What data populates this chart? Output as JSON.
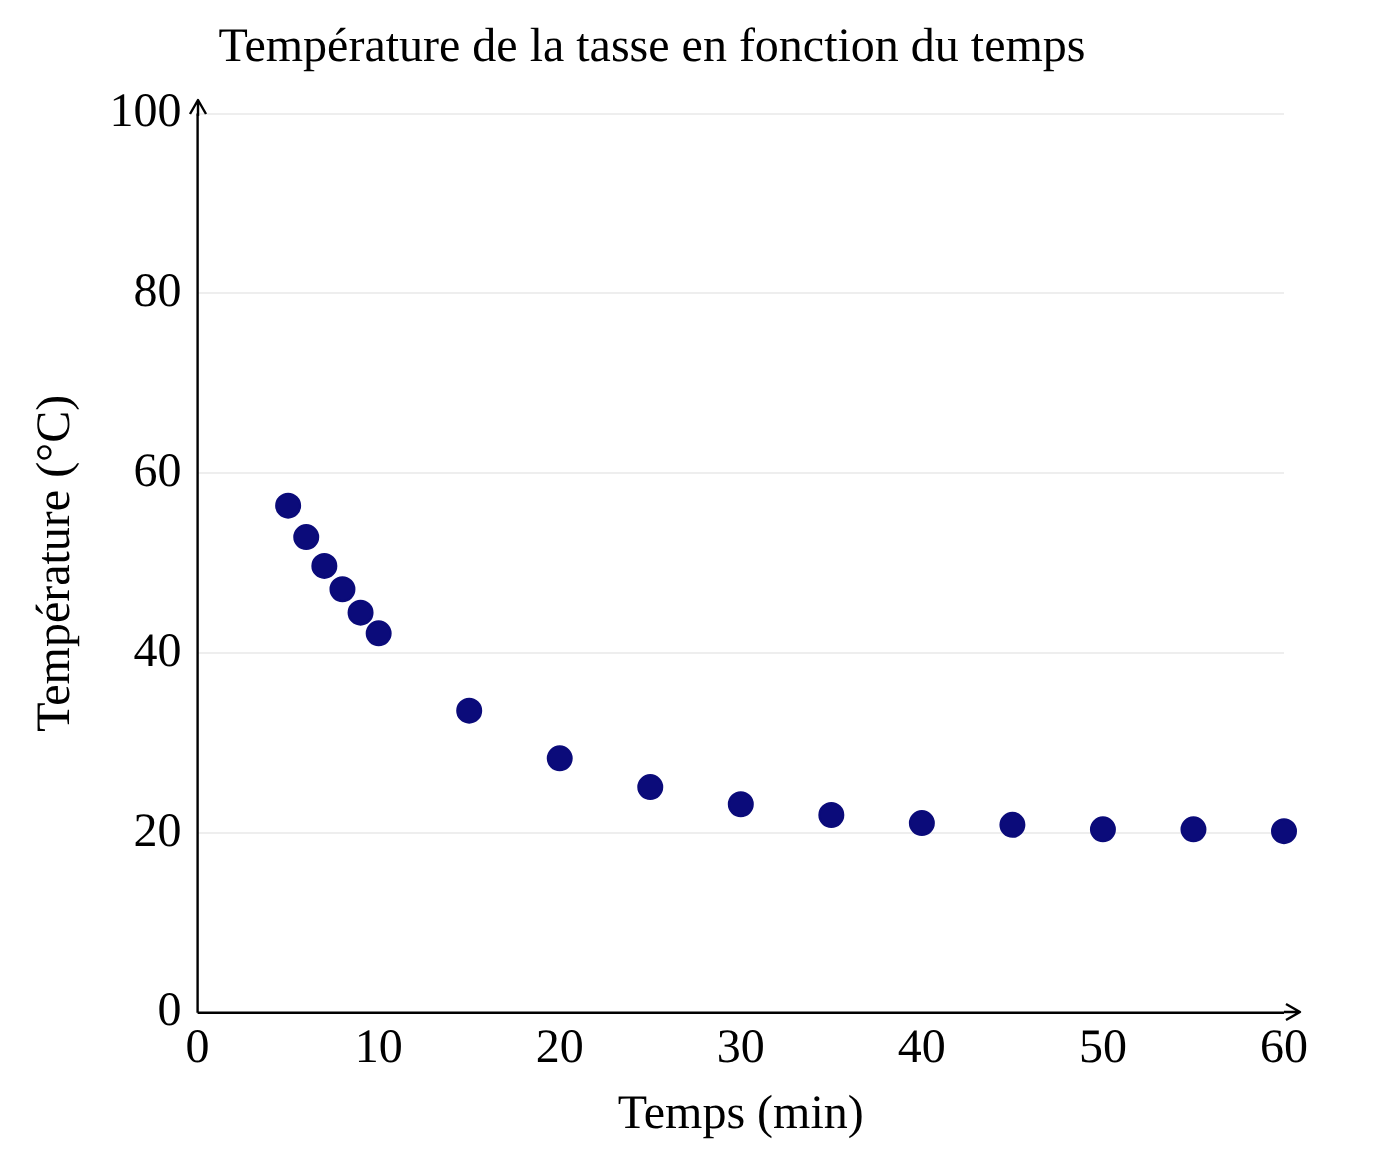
{
  "chart_data": {
    "type": "scatter",
    "title": "Température de la tasse en fonction du temps",
    "xlabel": "Temps (min)",
    "ylabel": "Température (°C)",
    "x": [
      5,
      6,
      7,
      8,
      9,
      10,
      15,
      20,
      25,
      30,
      35,
      40,
      45,
      50,
      55,
      60
    ],
    "series": [
      {
        "color": "#0b0b7a",
        "values": [
          56.4,
          52.9,
          49.7,
          47.1,
          44.5,
          42.2,
          33.6,
          28.3,
          25.1,
          23.2,
          22.0,
          21.1,
          20.9,
          20.4,
          20.4,
          20.2
        ]
      }
    ],
    "xlim": [
      0,
      60
    ],
    "xticks": [
      0,
      10,
      20,
      30,
      40,
      50,
      60
    ],
    "ylim": [
      0,
      100
    ],
    "yticks": [
      0,
      20,
      40,
      60,
      80,
      100
    ],
    "grid": "y",
    "legend": false,
    "marker": "circle"
  }
}
